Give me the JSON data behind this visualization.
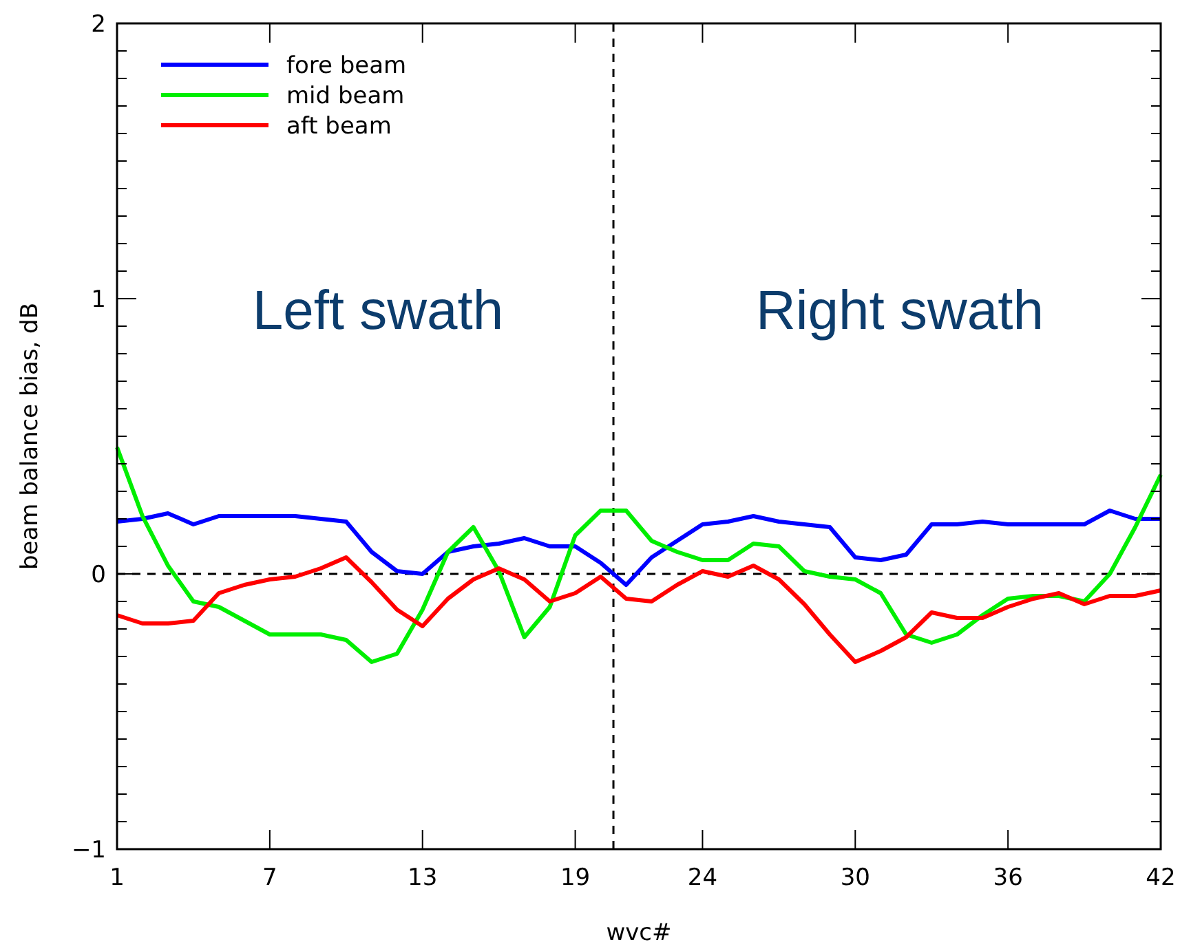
{
  "chart_data": {
    "type": "line",
    "xlabel": "wvc#",
    "ylabel": "beam balance bias, dB",
    "x": [
      1,
      2,
      3,
      4,
      5,
      6,
      7,
      8,
      9,
      10,
      11,
      12,
      13,
      14,
      15,
      16,
      17,
      18,
      19,
      20,
      21,
      22,
      23,
      24,
      25,
      26,
      27,
      28,
      29,
      30,
      31,
      32,
      33,
      34,
      35,
      36,
      37,
      38,
      39,
      40,
      41,
      42
    ],
    "series": [
      {
        "name": "fore beam",
        "color": "#0000ff",
        "values": [
          0.19,
          0.2,
          0.22,
          0.18,
          0.21,
          0.21,
          0.21,
          0.21,
          0.2,
          0.19,
          0.08,
          0.01,
          0.0,
          0.08,
          0.1,
          0.11,
          0.13,
          0.1,
          0.1,
          0.04,
          -0.04,
          0.06,
          0.12,
          0.18,
          0.19,
          0.21,
          0.19,
          0.18,
          0.17,
          0.06,
          0.05,
          0.07,
          0.18,
          0.18,
          0.19,
          0.18,
          0.18,
          0.18,
          0.18,
          0.23,
          0.2,
          0.2
        ]
      },
      {
        "name": "mid beam",
        "color": "#00ee00",
        "values": [
          0.46,
          0.21,
          0.03,
          -0.1,
          -0.12,
          -0.17,
          -0.22,
          -0.22,
          -0.22,
          -0.24,
          -0.32,
          -0.29,
          -0.13,
          0.08,
          0.17,
          0.01,
          -0.23,
          -0.12,
          0.14,
          0.23,
          0.23,
          0.12,
          0.08,
          0.05,
          0.05,
          0.11,
          0.1,
          0.01,
          -0.01,
          -0.02,
          -0.07,
          -0.22,
          -0.25,
          -0.22,
          -0.15,
          -0.09,
          -0.08,
          -0.08,
          -0.1,
          0.0,
          0.17,
          0.36
        ]
      },
      {
        "name": "aft beam",
        "color": "#ff0000",
        "values": [
          -0.15,
          -0.18,
          -0.18,
          -0.17,
          -0.07,
          -0.04,
          -0.02,
          -0.01,
          0.02,
          0.06,
          -0.03,
          -0.13,
          -0.19,
          -0.09,
          -0.02,
          0.02,
          -0.02,
          -0.1,
          -0.07,
          -0.01,
          -0.09,
          -0.1,
          -0.04,
          0.01,
          -0.01,
          0.03,
          -0.02,
          -0.11,
          -0.22,
          -0.32,
          -0.28,
          -0.23,
          -0.14,
          -0.16,
          -0.16,
          -0.12,
          -0.09,
          -0.07,
          -0.11,
          -0.08,
          -0.08,
          -0.06
        ]
      }
    ],
    "xlim": [
      1,
      42
    ],
    "xticks": [
      1,
      7,
      13,
      19,
      24,
      30,
      36,
      42
    ],
    "ylim": [
      -1,
      2
    ],
    "yticks": [
      -1,
      {
        "value": -0.9,
        "label": null
      },
      {
        "value": -0.8,
        "label": null
      },
      {
        "value": -0.7,
        "label": null
      },
      {
        "value": -0.6,
        "label": null
      },
      {
        "value": -0.5,
        "label": null
      },
      {
        "value": -0.4,
        "label": null
      },
      {
        "value": -0.3,
        "label": null
      },
      {
        "value": -0.2,
        "label": null
      },
      {
        "value": -0.1,
        "label": null
      },
      0,
      {
        "value": 0.1,
        "label": null
      },
      {
        "value": 0.2,
        "label": null
      },
      {
        "value": 0.3,
        "label": null
      },
      {
        "value": 0.4,
        "label": null
      },
      {
        "value": 0.5,
        "label": null
      },
      {
        "value": 0.6,
        "label": null
      },
      {
        "value": 0.7,
        "label": null
      },
      {
        "value": 0.8,
        "label": null
      },
      {
        "value": 0.9,
        "label": null
      },
      1,
      {
        "value": 1.1,
        "label": null
      },
      {
        "value": 1.2,
        "label": null
      },
      {
        "value": 1.3,
        "label": null
      },
      {
        "value": 1.4,
        "label": null
      },
      {
        "value": 1.5,
        "label": null
      },
      {
        "value": 1.6,
        "label": null
      },
      {
        "value": 1.7,
        "label": null
      },
      {
        "value": 1.8,
        "label": null
      },
      {
        "value": 1.9,
        "label": null
      },
      2
    ],
    "ref_lines": [
      {
        "axis": "y",
        "value": 0,
        "line_style": "dashed",
        "color": "#000000"
      },
      {
        "axis": "x",
        "value": 20.5,
        "line_style": "dashed",
        "color": "#000000"
      }
    ],
    "annotations": [
      "Left swath",
      "Right swath"
    ],
    "legend": "top left",
    "grid": false,
    "line_style": "solid"
  }
}
